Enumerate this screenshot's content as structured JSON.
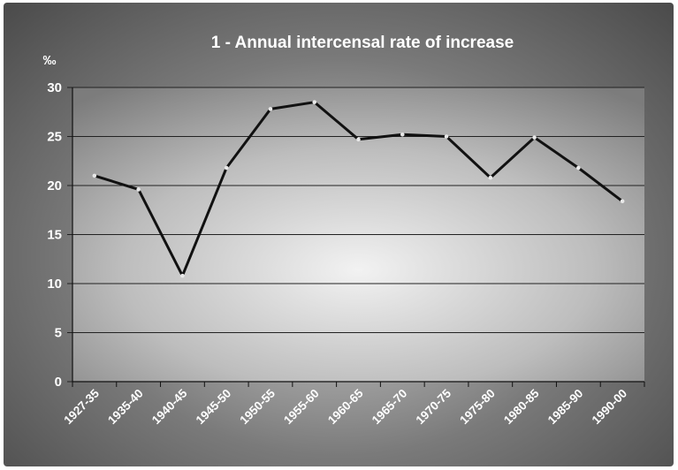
{
  "chart_data": {
    "type": "line",
    "title": "1 - Annual intercensal rate of increase",
    "ylabel": "‰",
    "xlabel": "",
    "ylim": [
      0,
      30
    ],
    "yticks": [
      0,
      5,
      10,
      15,
      20,
      25,
      30
    ],
    "grid": true,
    "legend": "none",
    "categories": [
      "1927-35",
      "1935-40",
      "1940-45",
      "1945-50",
      "1950-55",
      "1955-60",
      "1960-65",
      "1965-70",
      "1970-75",
      "1975-80",
      "1980-85",
      "1985-90",
      "1990-00"
    ],
    "series": [
      {
        "values": [
          21.0,
          19.6,
          10.8,
          21.8,
          27.8,
          28.5,
          24.7,
          25.2,
          25.0,
          20.8,
          24.9,
          21.8,
          18.4
        ]
      }
    ],
    "colors": {
      "line": "#111111",
      "marker": "#e8e8e8",
      "grid": "#222222",
      "text": "#ffffff"
    }
  }
}
